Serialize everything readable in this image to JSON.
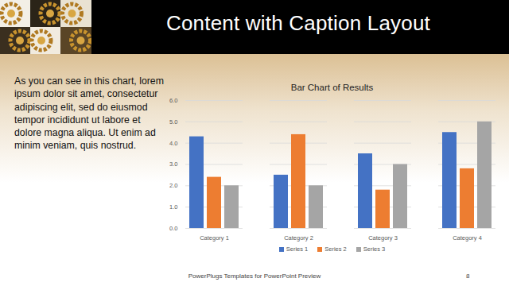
{
  "slide": {
    "title": "Content with Caption Layout",
    "caption": "As you can see in this chart, lorem ipsum dolor sit amet, consectetur adipiscing elit, sed do eiusmod tempor incididunt ut labore et dolore magna aliqua. Ut enim ad minim veniam, quis nostrud.",
    "footer": "PowerPlugs Templates for PowerPoint Preview",
    "page_number": "8"
  },
  "chart_data": {
    "type": "bar",
    "title": "Bar Chart of Results",
    "categories": [
      "Category 1",
      "Category 2",
      "Category 3",
      "Category 4"
    ],
    "series": [
      {
        "name": "Series 1",
        "color": "#4472c4",
        "values": [
          4.3,
          2.5,
          3.5,
          4.5
        ]
      },
      {
        "name": "Series 2",
        "color": "#ed7d31",
        "values": [
          2.4,
          4.4,
          1.8,
          2.8
        ]
      },
      {
        "name": "Series 3",
        "color": "#a5a5a5",
        "values": [
          2.0,
          2.0,
          3.0,
          5.0
        ]
      }
    ],
    "ylim": [
      0,
      6
    ],
    "yticks": [
      0,
      1,
      2,
      3,
      4,
      5,
      6
    ],
    "grid": true,
    "legend": "bottom"
  }
}
